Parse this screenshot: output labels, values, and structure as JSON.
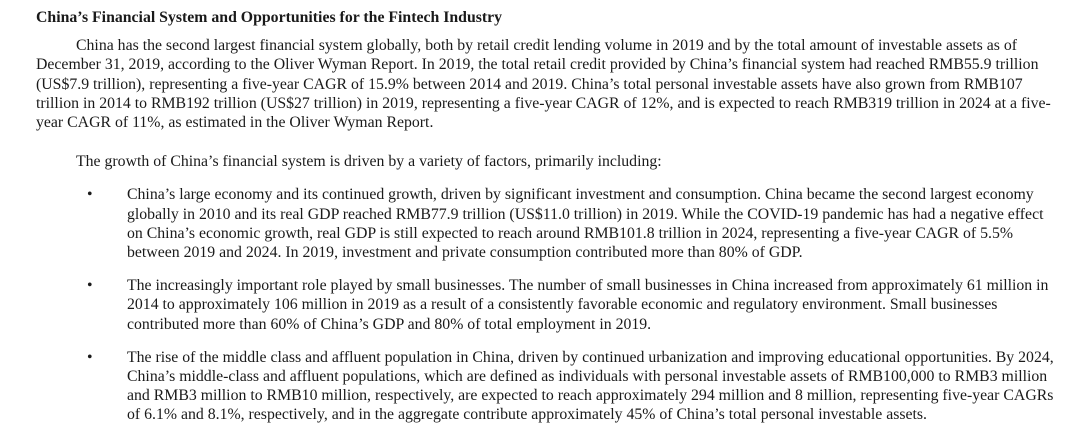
{
  "document": {
    "title": "China’s Financial System and Opportunities for the Fintech Industry",
    "bullet_glyph": "•",
    "paragraphs": [
      "China has the second largest financial system globally, both by retail credit lending volume in 2019 and by the total amount of investable assets as of December 31, 2019, according to the Oliver Wyman Report. In 2019, the total retail credit provided by China’s financial system had reached RMB55.9 trillion (US$7.9 trillion), representing a five-year CAGR of 15.9% between 2014 and 2019. China’s total personal investable assets have also grown from RMB107 trillion in 2014 to RMB192 trillion (US$27 trillion) in 2019, representing a five-year CAGR of 12%, and is expected to reach RMB319 trillion in 2024 at a five-year CAGR of 11%, as estimated in the Oliver Wyman Report.",
      "The growth of China’s financial system is driven by a variety of factors, primarily including:"
    ],
    "bullets": [
      "China’s large economy and its continued growth, driven by significant investment and consumption. China became the second largest economy globally in 2010 and its real GDP reached RMB77.9 trillion (US$11.0 trillion) in 2019. While the COVID-19 pandemic has had a negative effect on China’s economic growth, real GDP is still expected to reach around RMB101.8 trillion in 2024, representing a five-year CAGR of 5.5% between 2019 and 2024. In 2019, investment and private consumption contributed more than 80% of GDP.",
      "The increasingly important role played by small businesses. The number of small businesses in China increased from approximately 61 million in 2014 to approximately 106 million in 2019 as a result of a consistently favorable economic and regulatory environment. Small businesses contributed more than 60% of China’s GDP and 80% of total employment in 2019.",
      "The rise of the middle class and affluent population in China, driven by continued urbanization and improving educational opportunities. By 2024, China’s middle-class and affluent populations, which are defined as individuals with personal investable assets of RMB100,000 to RMB3 million and RMB3 million to RMB10 million, respectively, are expected to reach approximately 294 million and 8 million, representing five-year CAGRs of 6.1% and 8.1%, respectively, and in the aggregate contribute approximately 45% of China’s total personal investable assets."
    ],
    "colors": {
      "text": "#1a1a1a",
      "background": "#ffffff"
    }
  }
}
